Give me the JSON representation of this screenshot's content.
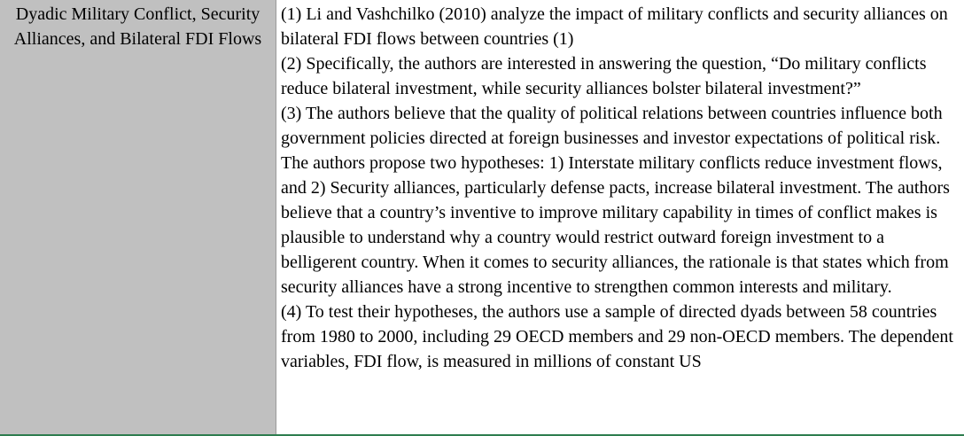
{
  "row": {
    "header": "Dyadic Military Conflict, Security Alliances, and Bilateral FDI Flows",
    "paragraphs": [
      "(1) Li and Vashchilko (2010) analyze the impact of military conflicts and security alliances on bilateral FDI flows between countries (1)",
      "(2) Specifically, the authors are interested in answering the question, “Do military conflicts reduce bilateral investment, while security alliances bolster bilateral investment?”",
      "(3) The authors believe that the quality of political relations between countries influence both government policies directed at foreign businesses and investor expectations of political risk. The authors propose two hypotheses: 1) Interstate military conflicts reduce investment flows, and 2) Security alliances, particularly defense pacts, increase bilateral investment. The authors believe that a country’s inventive to improve military capability in times of conflict makes is plausible to understand why a country would restrict outward foreign investment to a belligerent country. When it comes to security alliances, the rationale is that states which from security alliances have a strong incentive to strengthen common interests and military.",
      "(4) To test their hypotheses, the authors use a sample of directed dyads between 58 countries from 1980 to 2000, including 29 OECD members and 29 non-OECD members. The dependent variables, FDI flow, is measured in millions of constant US"
    ]
  },
  "colors": {
    "header_cell_bg": "#c0c0c0",
    "grid_line": "#2e7d4f"
  }
}
